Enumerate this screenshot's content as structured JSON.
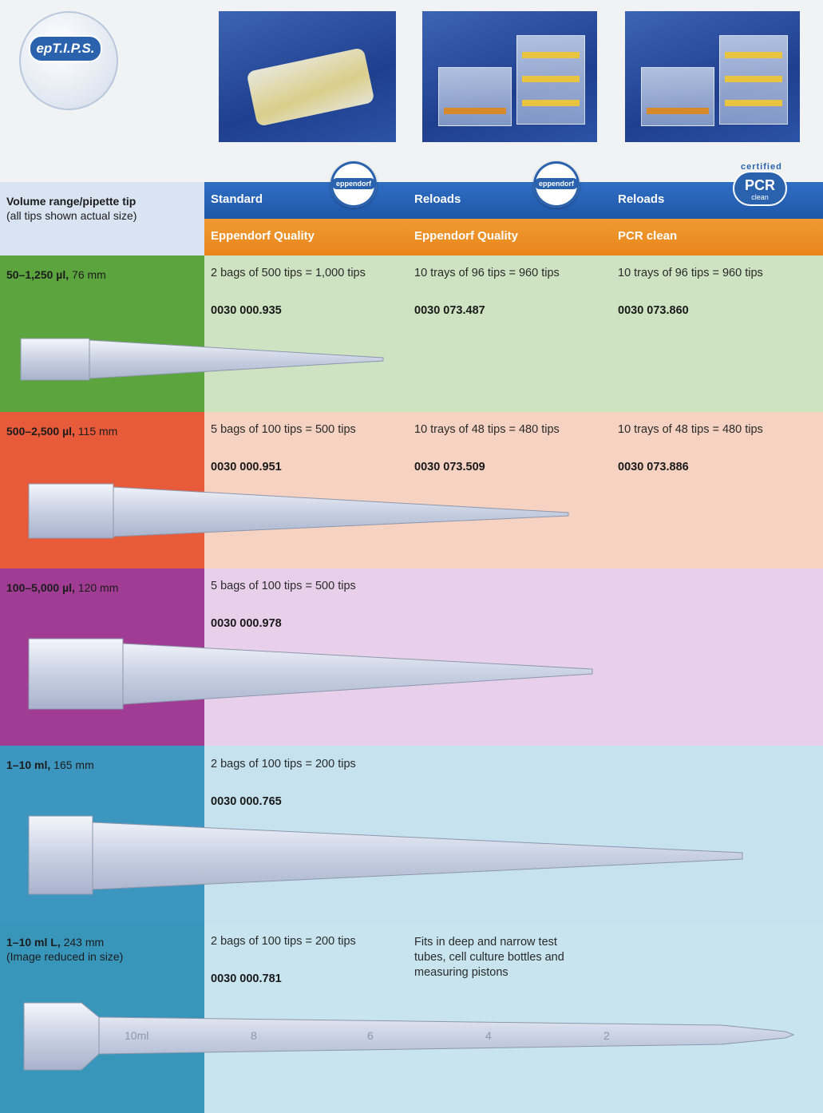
{
  "logo": {
    "text": "epT.I.P.S."
  },
  "header": {
    "left_title": "Volume range/pipette tip",
    "left_sub": "(all tips shown actual size)",
    "columns": [
      {
        "type": "Standard",
        "quality": "Eppendorf Quality",
        "badge": "eppendorf"
      },
      {
        "type": "Reloads",
        "quality": "Eppendorf Quality",
        "badge": "eppendorf"
      },
      {
        "type": "Reloads",
        "quality": "PCR clean",
        "badge_big": "PCR",
        "badge_small": "clean",
        "badge_top": "certified"
      }
    ]
  },
  "rows": [
    {
      "volume": "50–1,250 µl,",
      "length": " 76 mm",
      "note": "",
      "c1_pack": "2 bags of 500 tips = 1,000 tips",
      "c1_code": "0030 000.935",
      "c2_pack": "10 trays of 96 tips = 960 tips",
      "c2_code": "0030 073.487",
      "c3_pack": "10 trays of 96 tips = 960 tips",
      "c3_code": "0030 073.860"
    },
    {
      "volume": "500–2,500 µl,",
      "length": " 115 mm",
      "note": "",
      "c1_pack": "5 bags of 100 tips = 500 tips",
      "c1_code": "0030 000.951",
      "c2_pack": "10 trays of 48 tips = 480 tips",
      "c2_code": "0030 073.509",
      "c3_pack": "10 trays of 48 tips = 480 tips",
      "c3_code": "0030 073.886"
    },
    {
      "volume": "100–5,000 µl,",
      "length": " 120 mm",
      "note": "",
      "c1_pack": "5 bags of 100 tips = 500 tips",
      "c1_code": "0030 000.978"
    },
    {
      "volume": "1–10 ml,",
      "length": " 165 mm",
      "note": "",
      "c1_pack": "2 bags of 100 tips = 200 tips",
      "c1_code": "0030 000.765"
    },
    {
      "volume": "1–10 ml L,",
      "length": " 243 mm",
      "note": "(Image reduced in size)",
      "c1_pack": "2 bags of 100 tips = 200 tips",
      "c1_code": "0030 000.781",
      "c2_text": [
        "Fits in deep and narrow test",
        "tubes, cell culture bottles and",
        "measuring pistons"
      ],
      "tip_marks": [
        "10ml",
        "8",
        "6",
        "4",
        "2"
      ]
    }
  ],
  "colors": {
    "row1_left": "#5ca53e",
    "row1_right": "#cde3c2",
    "row2_left": "#e75a3a",
    "row2_right": "#f5d2c2",
    "row3_left": "#a03c94",
    "row3_right": "#e8d0ea",
    "row4_left": "#3d96bf",
    "row4_right": "#c5e2ee",
    "row5_left": "#3996bb",
    "row5_right": "#c8e4ee",
    "header_blue": "#1f56a8",
    "header_orange": "#e8861a"
  }
}
